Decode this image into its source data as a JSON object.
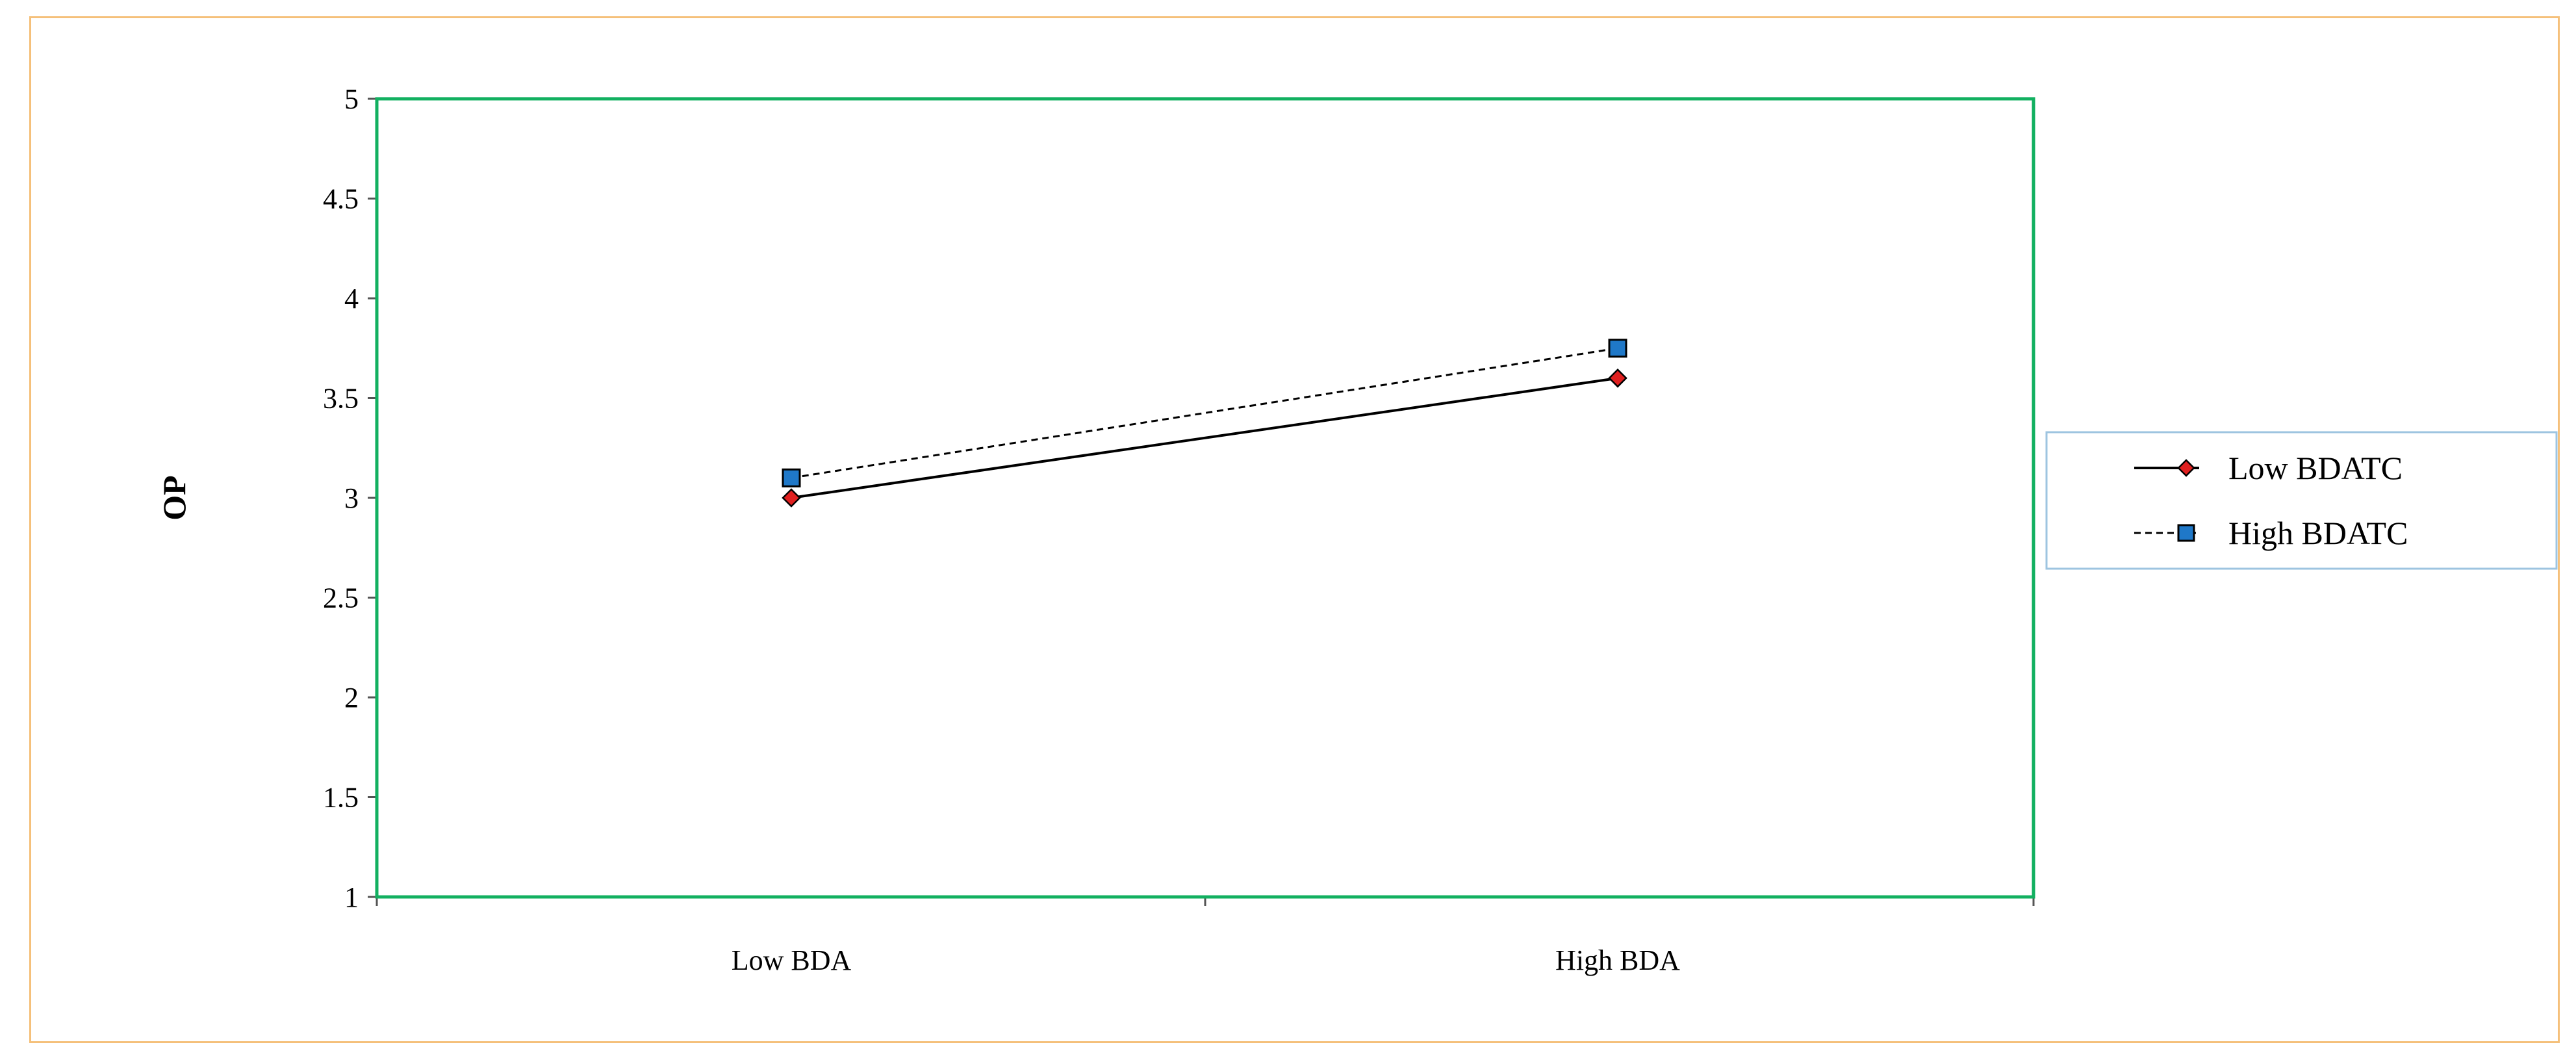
{
  "chart_data": {
    "type": "line",
    "title": "",
    "xlabel": "",
    "ylabel": "OP",
    "categories": [
      "Low BDA",
      "High BDA"
    ],
    "ylim": [
      1,
      5
    ],
    "yticks": [
      1,
      1.5,
      2,
      2.5,
      3,
      3.5,
      4,
      4.5,
      5
    ],
    "ytick_labels": [
      "1",
      "1.5",
      "2",
      "2.5",
      "3",
      "3.5",
      "4",
      "4.5",
      "5"
    ],
    "grid": false,
    "legend_position": "right",
    "series": [
      {
        "name": "Low BDATC",
        "values": [
          3.0,
          3.6
        ],
        "line_style": "solid",
        "marker": "diamond",
        "marker_color": "#e02020",
        "line_color": "#000000"
      },
      {
        "name": "High BDATC",
        "values": [
          3.1,
          3.75
        ],
        "line_style": "dashed",
        "marker": "square",
        "marker_color": "#1f78c8",
        "line_color": "#000000"
      }
    ],
    "colors": {
      "plot_border": "#12b060",
      "outer_border": "#f5c07a",
      "legend_border": "#9ec4e0"
    }
  }
}
